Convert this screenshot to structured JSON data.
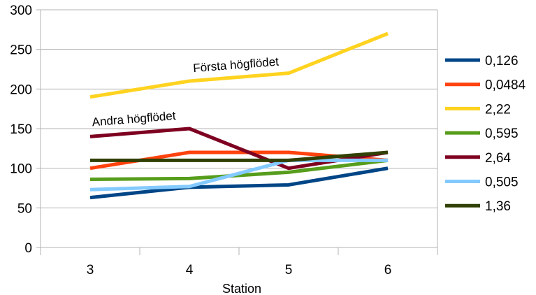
{
  "chart_data": {
    "type": "line",
    "title": "",
    "xlabel": "Station",
    "ylabel": "",
    "x": [
      3,
      4,
      5,
      6
    ],
    "ylim": [
      0,
      300
    ],
    "yticks": [
      0,
      50,
      100,
      150,
      200,
      250,
      300
    ],
    "grid": true,
    "legend": "right",
    "series": [
      {
        "name": "0,126",
        "color": "#004586",
        "values": [
          63,
          76,
          79,
          100
        ]
      },
      {
        "name": "0,0484",
        "color": "#ff420e",
        "values": [
          100,
          120,
          120,
          110
        ]
      },
      {
        "name": "2,22",
        "color": "#ffd320",
        "values": [
          190,
          210,
          220,
          270
        ]
      },
      {
        "name": "0,595",
        "color": "#579d1c",
        "values": [
          86,
          87,
          95,
          110
        ]
      },
      {
        "name": "2,64",
        "color": "#7e0021",
        "values": [
          140,
          150,
          100,
          120
        ]
      },
      {
        "name": "0,505",
        "color": "#83caff",
        "values": [
          73,
          77,
          110,
          110
        ]
      },
      {
        "name": "1,36",
        "color": "#314004",
        "values": [
          110,
          110,
          110,
          120
        ]
      }
    ],
    "annotations": [
      {
        "text": "Första högflödet",
        "series": "2,22"
      },
      {
        "text": "Andra högflödet",
        "series": "2,64"
      }
    ]
  }
}
